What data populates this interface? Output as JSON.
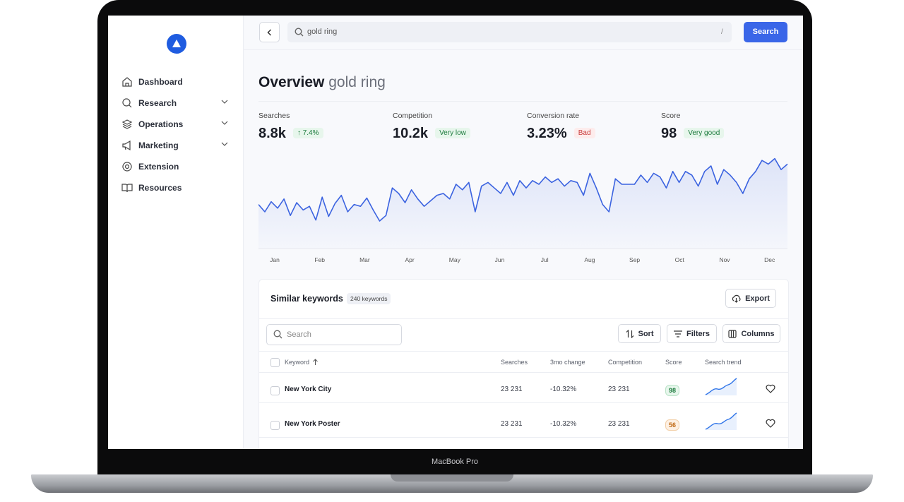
{
  "search": {
    "query": "gold ring",
    "shortcut": "/",
    "button": "Search"
  },
  "nav": [
    "Dashboard",
    "Research",
    "Operations",
    "Marketing",
    "Extension",
    "Resources"
  ],
  "overview": {
    "title": "Overview",
    "query": "gold ring"
  },
  "stats": [
    {
      "label": "Searches",
      "value": "8.8k",
      "badge": "↑ 7.4%"
    },
    {
      "label": "Competition",
      "value": "10.2k",
      "badge": "Very low"
    },
    {
      "label": "Conversion rate",
      "value": "3.23%",
      "badge": "Bad"
    },
    {
      "label": "Score",
      "value": "98",
      "badge": "Very good"
    }
  ],
  "chart_data": {
    "type": "line",
    "xtick_labels": [
      "Jan",
      "Feb",
      "Mar",
      "Apr",
      "May",
      "Jun",
      "Jul",
      "Aug",
      "Sep",
      "Oct",
      "Nov",
      "Dec"
    ],
    "values": [
      48,
      40,
      51,
      44,
      54,
      36,
      50,
      42,
      46,
      31,
      56,
      35,
      49,
      58,
      40,
      48,
      46,
      55,
      42,
      30,
      36,
      66,
      60,
      50,
      64,
      54,
      46,
      52,
      58,
      60,
      54,
      70,
      64,
      72,
      40,
      68,
      72,
      66,
      60,
      72,
      58,
      74,
      66,
      74,
      70,
      78,
      72,
      76,
      68,
      74,
      72,
      58,
      82,
      66,
      48,
      40,
      76,
      70,
      70,
      70,
      80,
      72,
      82,
      78,
      66,
      84,
      72,
      84,
      80,
      68,
      84,
      90,
      70,
      86,
      80,
      72,
      60,
      76,
      84,
      96,
      92,
      98,
      86,
      92
    ],
    "ylim": [
      0,
      100
    ],
    "color": "#3b63e0"
  },
  "keywords": {
    "title": "Similar keywords",
    "count": "240 keywords",
    "export": "Export",
    "search_placeholder": "Search",
    "sort": "Sort",
    "filters": "Filters",
    "columns": "Columns",
    "headers": [
      "Keyword",
      "Searches",
      "3mo change",
      "Competition",
      "Score",
      "Search trend"
    ],
    "rows": [
      [
        "New York City",
        "23 231",
        "-10.32%",
        "23 231",
        "98"
      ],
      [
        "New York Poster",
        "23 231",
        "-10.32%",
        "23 231",
        "56"
      ]
    ]
  },
  "device": "MacBook Pro"
}
